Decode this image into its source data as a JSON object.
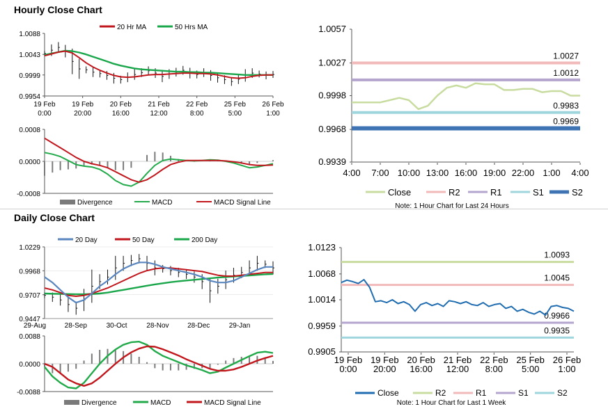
{
  "sections": {
    "hourly_title": "Hourly Close Chart",
    "daily_title": "Daily Close Chart"
  },
  "colors": {
    "ma_short": "#c0161c",
    "ma_long": "#1aa64a",
    "macd": "#22aa4a",
    "signal": "#c0161c",
    "divergence": "#7a7a7a",
    "price": "#111111",
    "blue_ma": "#5a86c0",
    "close_green": "#c8dca0",
    "close_blue": "#1f6cb0",
    "r2_pink": "#f1b9b9",
    "r1_purple": "#b4a5cf",
    "s1_cyan": "#9fd6de",
    "s2_blue": "#3f74b4",
    "r2_green": "#c8dca0"
  },
  "chart_data": [
    {
      "id": "hourly_price",
      "type": "line",
      "title": "",
      "legend": [
        "20 Hr MA",
        "50 Hrs MA"
      ],
      "ytick_labels": [
        "1.0088",
        "1.0043",
        "0.9999",
        "0.9954"
      ],
      "yticks": [
        1.0088,
        1.0043,
        0.9999,
        0.9954
      ],
      "ylim": [
        0.9954,
        1.0088
      ],
      "xtick_labels": [
        [
          "19 Feb",
          "0:00"
        ],
        [
          "19 Feb",
          "20:00"
        ],
        [
          "20 Feb",
          "16:00"
        ],
        [
          "21 Feb",
          "12:00"
        ],
        [
          "22 Feb",
          "8:00"
        ],
        [
          "25 Feb",
          "5:00"
        ],
        [
          "26 Feb",
          "1:00"
        ]
      ],
      "series": [
        {
          "name": "Close",
          "values": [
            1.0045,
            1.0052,
            1.0058,
            1.005,
            1.0028,
            1.0012,
            1.001,
            1.0005,
            1.0002,
            0.9998,
            0.9992,
            0.9989,
            0.9994,
            1.0,
            1.0004,
            1.0008,
            1.0003,
            0.9996,
            1.0001,
            1.0005,
            1.0009,
            1.0003,
            1.0,
            1.0004,
            0.9998,
            0.9993,
            0.9989,
            0.9985,
            0.999,
            0.9998,
            1.0003,
            1.0001,
            0.9998,
            1.0
          ]
        },
        {
          "name": "20 Hr MA",
          "values": [
            1.004,
            1.0044,
            1.0048,
            1.005,
            1.0046,
            1.0036,
            1.0025,
            1.0016,
            1.0009,
            1.0003,
            0.9998,
            0.9995,
            0.9994,
            0.9995,
            0.9997,
            0.9999,
            1.0,
            1.0,
            1.0001,
            1.0002,
            1.0003,
            1.0003,
            1.0002,
            1.0002,
            1.0001,
            0.9999,
            0.9996,
            0.9993,
            0.9992,
            0.9993,
            0.9996,
            0.9998,
            0.9999,
            0.9999
          ]
        },
        {
          "name": "50 Hrs MA",
          "values": [
            1.0042,
            1.0045,
            1.0048,
            1.0051,
            1.005,
            1.0047,
            1.0043,
            1.0038,
            1.0033,
            1.0028,
            1.0023,
            1.0019,
            1.0016,
            1.0013,
            1.0011,
            1.001,
            1.0009,
            1.0008,
            1.0007,
            1.0006,
            1.0006,
            1.0005,
            1.0005,
            1.0004,
            1.0004,
            1.0003,
            1.0002,
            1.0001,
            1.0,
            0.9999,
            0.9999,
            0.9999,
            0.9999,
            0.9999
          ]
        }
      ]
    },
    {
      "id": "hourly_macd",
      "type": "line",
      "title": "",
      "legend": [
        "Divergence",
        "MACD",
        "MACD Signal Line"
      ],
      "ytick_labels": [
        "0.0008",
        "0.0000",
        "-0.0008"
      ],
      "yticks": [
        0.0008,
        0.0,
        -0.0008
      ],
      "ylim": [
        -0.0008,
        0.0008
      ],
      "series": [
        {
          "name": "MACD",
          "values": [
            0.00022,
            0.00018,
            0.00012,
            2e-05,
            -8e-05,
            -0.00012,
            -0.00014,
            -0.0002,
            -0.00032,
            -0.00048,
            -0.00058,
            -0.00062,
            -0.00052,
            -0.0003,
            -0.0001,
            2e-05,
            6e-05,
            4e-05,
            2e-05,
            1e-05,
            2e-05,
            4e-05,
            3e-05,
            0.0,
            -4e-05,
            -0.0001,
            -0.00016,
            -0.00014,
            -0.0001,
            -6e-05
          ]
        },
        {
          "name": "MACD Signal Line",
          "values": [
            0.00058,
            0.00046,
            0.00034,
            0.00022,
            0.0001,
            0.0,
            -6e-05,
            -0.0001,
            -0.00016,
            -0.00026,
            -0.00036,
            -0.00046,
            -0.00052,
            -0.00046,
            -0.00034,
            -0.0002,
            -8e-05,
            -2e-05,
            2e-05,
            2e-05,
            2e-05,
            2e-05,
            2e-05,
            1e-05,
            -1e-05,
            -4e-05,
            -8e-05,
            -0.0001,
            -0.0001,
            -9e-05
          ]
        },
        {
          "name": "Divergence",
          "values": [
            -0.00036,
            -0.00028,
            -0.00022,
            -0.0002,
            -0.00018,
            -0.00012,
            -8e-05,
            -0.0001,
            -0.00016,
            -0.00022,
            -0.00022,
            -0.00016,
            0.0,
            0.00016,
            0.00024,
            0.00022,
            0.00014,
            6e-05,
            0.0,
            -1e-05,
            0.0,
            2e-05,
            1e-05,
            -1e-05,
            -3e-05,
            -6e-05,
            -8e-05,
            -4e-05,
            0.0,
            3e-05
          ]
        }
      ]
    },
    {
      "id": "hourly_pivot",
      "type": "line",
      "title": "",
      "note": "Note: 1 Hour Chart for Last 24 Hours",
      "ytick_labels": [
        "1.0057",
        "1.0027",
        "0.9998",
        "0.9968",
        "0.9939"
      ],
      "yticks": [
        1.0057,
        1.0027,
        0.9998,
        0.9968,
        0.9939
      ],
      "ylim": [
        0.9939,
        1.0057
      ],
      "xtick_labels": [
        "4:00",
        "7:00",
        "10:00",
        "13:00",
        "16:00",
        "19:00",
        "22:00",
        "1:00",
        "4:00"
      ],
      "legend": [
        "Close",
        "R2",
        "R1",
        "S1",
        "S2"
      ],
      "levels": [
        {
          "name": "R2",
          "value": 1.0027,
          "label": "1.0027"
        },
        {
          "name": "R1",
          "value": 1.0012,
          "label": "1.0012"
        },
        {
          "name": "S1",
          "value": 0.9983,
          "label": "0.9983"
        },
        {
          "name": "S2",
          "value": 0.9969,
          "label": "0.9969"
        }
      ],
      "series": [
        {
          "name": "Close",
          "values": [
            0.9992,
            0.9992,
            0.9992,
            0.9992,
            0.9994,
            0.9996,
            0.9994,
            0.9986,
            0.9989,
            0.9998,
            1.0005,
            1.0007,
            1.0005,
            1.0009,
            1.0008,
            1.0008,
            1.0003,
            1.0003,
            1.0004,
            1.0004,
            1.0001,
            1.0002,
            1.0002,
            0.9998,
            0.9998
          ]
        }
      ]
    },
    {
      "id": "daily_price",
      "type": "line",
      "title": "",
      "legend": [
        "20 Day",
        "50 Day",
        "200 Day"
      ],
      "ytick_labels": [
        "1.0229",
        "0.9968",
        "0.9707",
        "0.9447"
      ],
      "yticks": [
        1.0229,
        0.9968,
        0.9707,
        0.9447
      ],
      "ylim": [
        0.9447,
        1.0229
      ],
      "xtick_labels": [
        "29-Aug",
        "28-Sep",
        "30-Oct",
        "28-Nov",
        "28-Dec",
        "29-Jan"
      ],
      "series": [
        {
          "name": "Close",
          "values": [
            0.97,
            0.968,
            0.965,
            0.96,
            0.956,
            0.965,
            0.98,
            0.985,
            0.99,
            1.0,
            1.005,
            1.008,
            1.01,
            1.005,
            1.0,
            0.999,
            0.997,
            0.995,
            0.993,
            0.99,
            0.985,
            0.975,
            0.98,
            0.987,
            0.992,
            0.995,
            1.0,
            1.005,
            1.004,
            1.0
          ]
        },
        {
          "name": "20 Day",
          "values": [
            0.99,
            0.984,
            0.976,
            0.968,
            0.962,
            0.965,
            0.972,
            0.98,
            0.986,
            0.993,
            0.999,
            1.003,
            1.006,
            1.006,
            1.004,
            1.001,
            0.999,
            0.997,
            0.995,
            0.993,
            0.99,
            0.986,
            0.984,
            0.984,
            0.986,
            0.99,
            0.994,
            0.998,
            1.001,
            1.001
          ]
        },
        {
          "name": "50 Day",
          "values": [
            0.978,
            0.976,
            0.973,
            0.97,
            0.969,
            0.97,
            0.972,
            0.975,
            0.978,
            0.982,
            0.986,
            0.99,
            0.994,
            0.997,
            0.999,
            1.0,
            1.0,
            0.999,
            0.998,
            0.997,
            0.996,
            0.994,
            0.992,
            0.991,
            0.991,
            0.992,
            0.993,
            0.994,
            0.995,
            0.995
          ]
        },
        {
          "name": "200 Day",
          "values": [
            0.972,
            0.9718,
            0.9716,
            0.9714,
            0.9712,
            0.9712,
            0.9715,
            0.972,
            0.973,
            0.9745,
            0.976,
            0.9775,
            0.979,
            0.9805,
            0.982,
            0.9832,
            0.9844,
            0.9854,
            0.9862,
            0.987,
            0.9878,
            0.9886,
            0.9894,
            0.99,
            0.9906,
            0.9912,
            0.9918,
            0.9924,
            0.993,
            0.9934
          ]
        }
      ]
    },
    {
      "id": "daily_macd",
      "type": "line",
      "title": "",
      "legend": [
        "Divergence",
        "MACD",
        "MACD Signal Line"
      ],
      "ytick_labels": [
        "0.0088",
        "0.0000",
        "-0.0088"
      ],
      "yticks": [
        0.0088,
        0.0,
        -0.0088
      ],
      "ylim": [
        -0.0088,
        0.0088
      ],
      "series": [
        {
          "name": "MACD",
          "values": [
            -0.001,
            -0.004,
            -0.006,
            -0.0075,
            -0.0078,
            -0.006,
            -0.003,
            0.0,
            0.0025,
            0.0045,
            0.006,
            0.0068,
            0.007,
            0.006,
            0.004,
            0.0025,
            0.0015,
            0.0005,
            -0.0005,
            -0.0012,
            -0.002,
            -0.003,
            -0.0025,
            -0.0012,
            0.0,
            0.0012,
            0.0024,
            0.0035,
            0.0038,
            0.0034
          ]
        },
        {
          "name": "MACD Signal Line",
          "values": [
            0.0,
            -0.001,
            -0.003,
            -0.005,
            -0.0062,
            -0.007,
            -0.0062,
            -0.0044,
            -0.0022,
            0.0,
            0.002,
            0.0036,
            0.0048,
            0.0055,
            0.0054,
            0.0046,
            0.0036,
            0.0026,
            0.0014,
            0.0004,
            -0.0006,
            -0.0016,
            -0.0022,
            -0.0022,
            -0.0018,
            -0.001,
            0.0,
            0.001,
            0.0018,
            0.0025
          ]
        },
        {
          "name": "Divergence",
          "values": [
            -0.001,
            -0.003,
            -0.003,
            -0.0025,
            -0.0016,
            0.001,
            0.0032,
            0.0044,
            0.0047,
            0.0045,
            0.004,
            0.0032,
            0.0022,
            0.0005,
            -0.0014,
            -0.0021,
            -0.0021,
            -0.0021,
            -0.0019,
            -0.0016,
            -0.0014,
            -0.0014,
            -0.0003,
            0.001,
            0.0018,
            0.0022,
            0.0024,
            0.0025,
            0.002,
            0.0009
          ]
        }
      ]
    },
    {
      "id": "daily_pivot",
      "type": "line",
      "title": "",
      "note": "Note: 1 Hour Chart for Last 1 Week",
      "ytick_labels": [
        "1.0123",
        "1.0068",
        "1.0014",
        "0.9959",
        "0.9905"
      ],
      "yticks": [
        1.0123,
        1.0068,
        1.0014,
        0.9959,
        0.9905
      ],
      "ylim": [
        0.9905,
        1.0123
      ],
      "xtick_labels": [
        [
          "19 Feb",
          "0:00"
        ],
        [
          "19 Feb",
          "20:00"
        ],
        [
          "20 Feb",
          "16:00"
        ],
        [
          "21 Feb",
          "12:00"
        ],
        [
          "22 Feb",
          "8:00"
        ],
        [
          "25 Feb",
          "5:00"
        ],
        [
          "26 Feb",
          "1:00"
        ]
      ],
      "legend": [
        "Close",
        "R2",
        "R1",
        "S1",
        "S2"
      ],
      "levels": [
        {
          "name": "R2",
          "value": 1.0093,
          "label": "1.0093"
        },
        {
          "name": "R1",
          "value": 1.0045,
          "label": "1.0045"
        },
        {
          "name": "S1",
          "value": 0.9966,
          "label": "0.9966"
        },
        {
          "name": "S2",
          "value": 0.9935,
          "label": "0.9935"
        }
      ],
      "series": [
        {
          "name": "Close",
          "values": [
            1.005,
            1.0055,
            1.0052,
            1.0048,
            1.0056,
            1.004,
            1.001,
            1.0012,
            1.0008,
            1.0014,
            1.0006,
            1.001,
            1.0004,
            0.999,
            1.0004,
            1.0008,
            1.0002,
            1.0006,
            1.0,
            1.0012,
            1.001,
            1.0006,
            1.001,
            1.0004,
            1.0002,
            1.0008,
            1.0,
            1.0004,
            1.0006,
            0.9996,
            1.0,
            0.999,
            0.9994,
            0.9988,
            0.9984,
            0.999,
            0.9982,
            1.0,
            1.0002,
            0.9998,
            0.9996,
            0.999
          ]
        }
      ]
    }
  ]
}
